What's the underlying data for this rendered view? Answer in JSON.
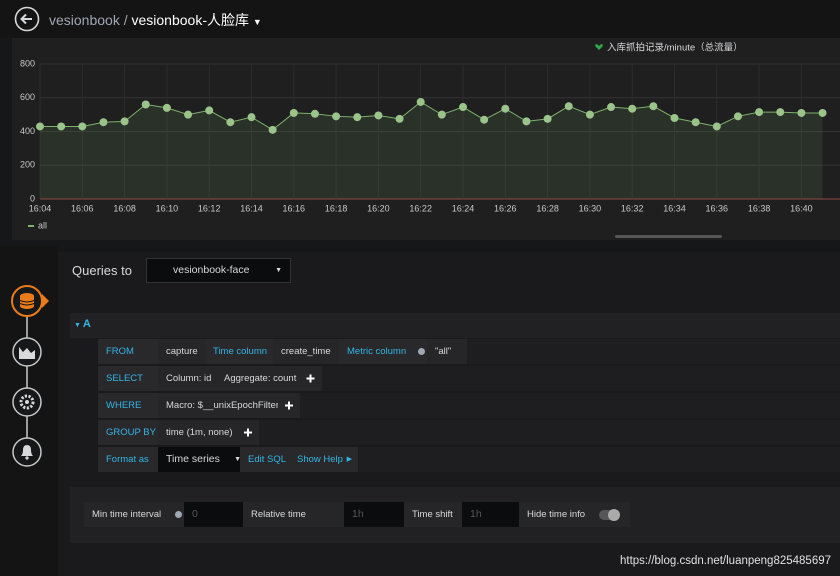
{
  "header": {
    "parent": "vesionbook",
    "separator": "/",
    "dashboard": "vesionbook-人脸库"
  },
  "chart_data": {
    "type": "line",
    "title": "入库抓拍记录/minute（总流量）",
    "categories": [
      "16:04",
      null,
      "16:06",
      null,
      "16:08",
      null,
      "16:10",
      null,
      "16:12",
      null,
      "16:14",
      null,
      "16:16",
      null,
      "16:18",
      null,
      "16:20",
      null,
      "16:22",
      null,
      "16:24",
      null,
      "16:26",
      null,
      "16:28",
      null,
      "16:30",
      null,
      "16:32",
      null,
      "16:34",
      null,
      "16:36",
      null,
      "16:38",
      null,
      "16:40",
      null
    ],
    "series": [
      {
        "name": "all",
        "color": "#7eb26d",
        "values": [
          430,
          430,
          430,
          455,
          460,
          560,
          540,
          500,
          525,
          455,
          485,
          410,
          510,
          505,
          490,
          485,
          495,
          475,
          575,
          500,
          545,
          470,
          535,
          460,
          475,
          550,
          500,
          545,
          535,
          550,
          480,
          455,
          430,
          490,
          515,
          515,
          510,
          510
        ]
      }
    ],
    "ylim": [
      0,
      800
    ],
    "yticks": [
      0,
      200,
      400,
      600,
      800
    ],
    "grid": true
  },
  "queries": {
    "label": "Queries to",
    "datasource": "vesionbook-face",
    "ref": "A",
    "rows": [
      {
        "keyword": "FROM",
        "parts": [
          "capture",
          "Time column",
          "create_time",
          "Metric column",
          "\"all\""
        ]
      },
      {
        "keyword": "SELECT",
        "parts": [
          "Column: id",
          "Aggregate: count"
        ]
      },
      {
        "keyword": "WHERE",
        "parts": [
          "Macro: $__unixEpochFilter"
        ]
      },
      {
        "keyword": "GROUP BY",
        "parts": [
          "time (1m, none)"
        ]
      },
      {
        "keyword": "Format as",
        "parts": [
          "Time series",
          "Edit SQL",
          "Show Help"
        ]
      }
    ]
  },
  "options": {
    "min_interval": "Min time interval",
    "min_interval_value": "0",
    "relative_time": "Relative time",
    "relative_time_value": "1h",
    "time_shift": "Time shift",
    "time_shift_value": "1h",
    "hide_time_info": "Hide time info"
  },
  "watermark": "https://blog.csdn.net/luanpeng825485697"
}
